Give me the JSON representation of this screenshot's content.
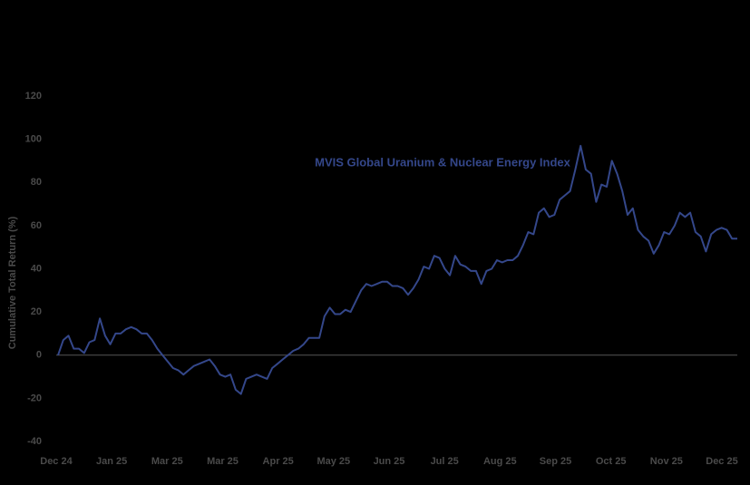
{
  "chart_data": {
    "type": "line",
    "y_label": "Cumulative Total Return (%)",
    "xtick_labels": [
      "Dec 24",
      "Jan 25",
      "Mar 25",
      "Mar 25",
      "Apr 25",
      "May 25",
      "Jun 25",
      "Jul 25",
      "Aug 25",
      "Sep 25",
      "Oct 25",
      "Nov 25",
      "Dec 25"
    ],
    "ylim": [
      -40,
      120
    ],
    "yticks": [
      -40,
      -20,
      0,
      20,
      40,
      60,
      80,
      100,
      120
    ],
    "zero_line": true,
    "series": [
      {
        "name": "MVIS Global Uranium & Nuclear Energy Index",
        "color": "#34478a",
        "values": [
          0,
          7,
          9,
          3,
          3,
          1,
          6,
          7,
          17,
          9,
          5,
          10,
          10,
          12,
          13,
          12,
          10,
          10,
          7,
          3,
          0,
          -3,
          -6,
          -7,
          -9,
          -7,
          -5,
          -4,
          -3,
          -2,
          -5,
          -9,
          -10,
          -9,
          -16,
          -18,
          -11,
          -10,
          -9,
          -10,
          -11,
          -6,
          -4,
          -2,
          0,
          2,
          3,
          5,
          8,
          8,
          8,
          18,
          22,
          19,
          19,
          21,
          20,
          25,
          30,
          33,
          32,
          33,
          34,
          34,
          32,
          32,
          31,
          28,
          31,
          35,
          41,
          40,
          46,
          45,
          40,
          37,
          46,
          42,
          41,
          39,
          39,
          33,
          39,
          40,
          44,
          43,
          44,
          44,
          46,
          51,
          57,
          56,
          66,
          68,
          64,
          65,
          72,
          74,
          76,
          86,
          97,
          86,
          84,
          71,
          79,
          78,
          90,
          84,
          76,
          65,
          68,
          58,
          55,
          53,
          47,
          51,
          57,
          56,
          60,
          66,
          64,
          66,
          57,
          55,
          48,
          56,
          58,
          59,
          58,
          54,
          54
        ]
      }
    ]
  }
}
